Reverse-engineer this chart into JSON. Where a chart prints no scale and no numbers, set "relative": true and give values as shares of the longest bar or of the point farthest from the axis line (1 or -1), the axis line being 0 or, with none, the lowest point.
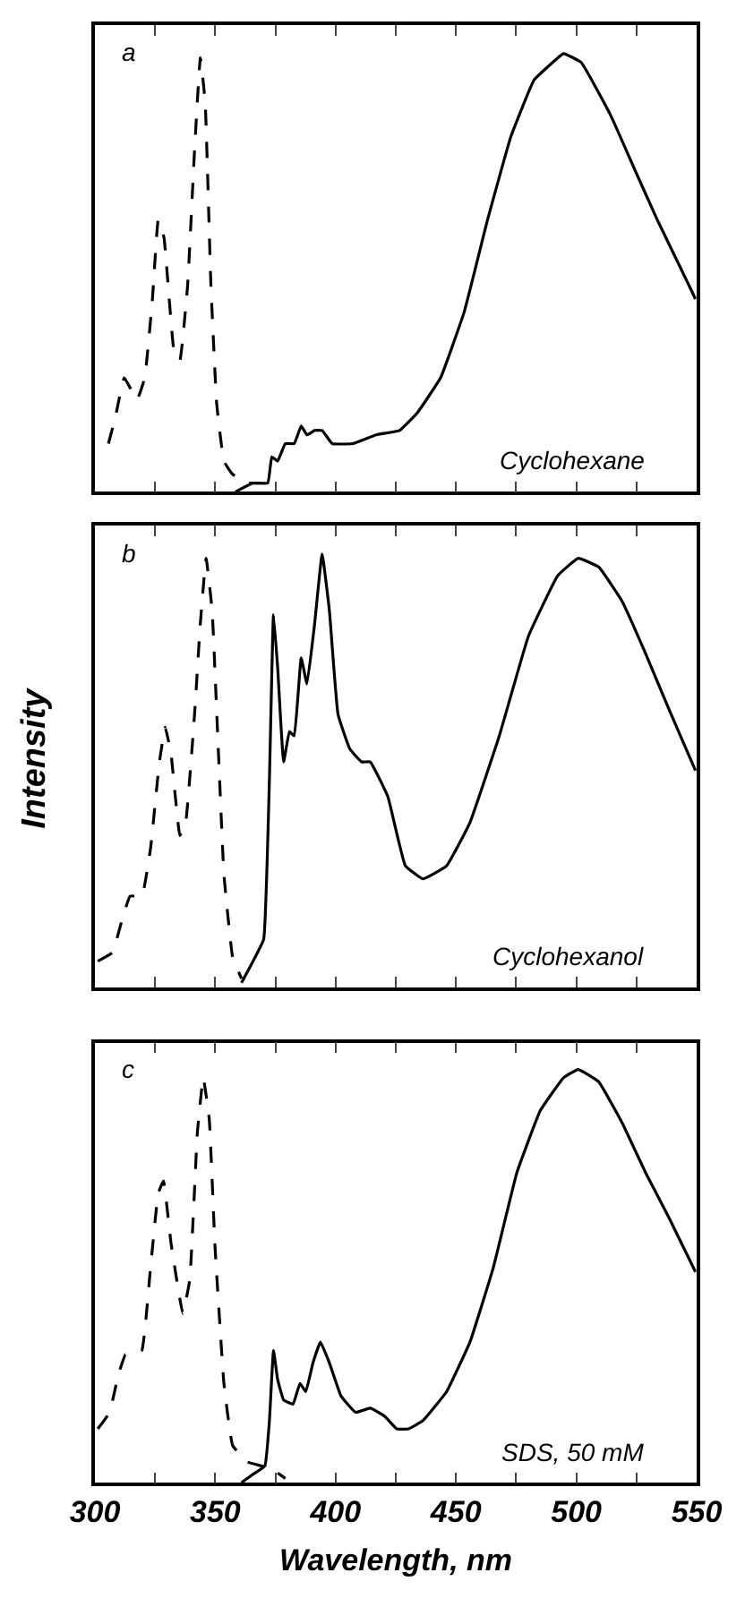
{
  "chart_data": [
    {
      "type": "line",
      "relative": true,
      "xlim": [
        300,
        550
      ],
      "xticks": [
        300,
        {
          "value": 325,
          "label": null
        },
        350,
        {
          "value": 375,
          "label": null
        },
        400,
        {
          "value": 425,
          "label": null
        },
        450,
        {
          "value": 475,
          "label": null
        },
        500,
        {
          "value": 525,
          "label": null
        },
        550
      ],
      "tick_labels": false,
      "annotations": [
        "a",
        "Cyclohexane"
      ],
      "series": [
        {
          "color": "#000000",
          "line_style": "dashed",
          "x": [
            305.6,
            308.5,
            312.2,
            317.5,
            320.7,
            323.9,
            326.3,
            328.7,
            332.9,
            335.3,
            338.5,
            341.4,
            343.8,
            345.8,
            348.2,
            350.6,
            353.6,
            357.2,
            363.3,
            368.2
          ],
          "values": [
            0.11,
            0.17,
            0.26,
            0.21,
            0.26,
            0.44,
            0.62,
            0.58,
            0.32,
            0.3,
            0.47,
            0.78,
            0.99,
            0.89,
            0.47,
            0.2,
            0.07,
            0.04,
            0.02,
            0.02
          ]
        },
        {
          "color": "#000000",
          "line_style": "solid",
          "x": [
            358.4,
            365.7,
            371.8,
            373.5,
            375.9,
            379.1,
            382.8,
            385.7,
            388.1,
            391.3,
            394.4,
            398.6,
            407.1,
            416.8,
            426.6,
            433.9,
            443.6,
            453.4,
            463.1,
            472.8,
            482.5,
            492.3,
            494.7,
            502.0,
            514.2,
            523.9,
            533.7,
            543.4,
            549.5
          ],
          "values": [
            0,
            0.02,
            0.02,
            0.08,
            0.07,
            0.11,
            0.11,
            0.15,
            0.13,
            0.14,
            0.14,
            0.11,
            0.11,
            0.13,
            0.14,
            0.18,
            0.26,
            0.41,
            0.62,
            0.81,
            0.94,
            0.99,
            1.0,
            0.98,
            0.86,
            0.74,
            0.62,
            0.51,
            0.44
          ]
        }
      ]
    },
    {
      "type": "line",
      "relative": true,
      "ylabel": "Intensity",
      "xlim": [
        300,
        550
      ],
      "xticks": [
        300,
        {
          "value": 325,
          "label": null
        },
        350,
        {
          "value": 375,
          "label": null
        },
        400,
        {
          "value": 425,
          "label": null
        },
        450,
        {
          "value": 475,
          "label": null
        },
        500,
        {
          "value": 525,
          "label": null
        },
        550
      ],
      "tick_labels": false,
      "annotations": [
        "b",
        "Cyclohexanol"
      ],
      "series": [
        {
          "color": "#000000",
          "line_style": "dashed",
          "x": [
            301.2,
            307.3,
            311.0,
            314.6,
            319.5,
            323.1,
            326.8,
            329.2,
            331.6,
            335.3,
            337.7,
            341.4,
            343.8,
            346.2,
            348.7,
            351.1,
            353.6,
            357.2,
            360.9
          ],
          "values": [
            0.06,
            0.08,
            0.15,
            0.21,
            0.21,
            0.32,
            0.52,
            0.6,
            0.54,
            0.35,
            0.38,
            0.63,
            0.84,
            0.99,
            0.87,
            0.57,
            0.26,
            0.07,
            0.02
          ]
        },
        {
          "color": "#000000",
          "line_style": "solid",
          "x": [
            360.9,
            365.7,
            370.1,
            372.5,
            374.2,
            375.9,
            378.4,
            380.8,
            382.8,
            385.7,
            388.1,
            391.3,
            394.4,
            397.4,
            401.0,
            405.9,
            410.8,
            414.4,
            421.7,
            429.0,
            436.3,
            446.1,
            455.8,
            468.0,
            480.1,
            492.3,
            500.8,
            509.3,
            519.1,
            528.8,
            538.6,
            549.5
          ],
          "values": [
            0.01,
            0.06,
            0.11,
            0.48,
            0.86,
            0.74,
            0.52,
            0.59,
            0.58,
            0.76,
            0.7,
            0.84,
            1.0,
            0.87,
            0.63,
            0.55,
            0.52,
            0.52,
            0.44,
            0.28,
            0.25,
            0.28,
            0.38,
            0.58,
            0.81,
            0.95,
            0.99,
            0.97,
            0.89,
            0.77,
            0.64,
            0.5
          ]
        }
      ]
    },
    {
      "type": "line",
      "relative": true,
      "xlabel": "Wavelength, nm",
      "xlim": [
        300,
        550
      ],
      "xticks": [
        300,
        {
          "value": 325,
          "label": null
        },
        350,
        {
          "value": 375,
          "label": null
        },
        400,
        {
          "value": 425,
          "label": null
        },
        450,
        {
          "value": 475,
          "label": null
        },
        500,
        {
          "value": 525,
          "label": null
        },
        550
      ],
      "tick_labels": "x",
      "annotations": [
        "c",
        "SDS, 50 mM"
      ],
      "series": [
        {
          "color": "#000000",
          "line_style": "dashed",
          "x": [
            301.2,
            306.1,
            309.7,
            312.7,
            315.8,
            319.5,
            323.1,
            326.3,
            328.5,
            331.6,
            336.5,
            339.4,
            342.6,
            345.0,
            347.5,
            349.9,
            353.6,
            357.2,
            363.3,
            369.4,
            374.2,
            379.1
          ],
          "values": [
            0.13,
            0.17,
            0.26,
            0.31,
            0.31,
            0.32,
            0.52,
            0.7,
            0.73,
            0.58,
            0.41,
            0.49,
            0.85,
            0.98,
            0.88,
            0.57,
            0.24,
            0.09,
            0.05,
            0.04,
            0.03,
            0.01
          ]
        },
        {
          "color": "#000000",
          "line_style": "solid",
          "x": [
            360.9,
            365.7,
            370.6,
            372.5,
            374.2,
            375.9,
            378.4,
            382.3,
            385.2,
            387.6,
            390.6,
            393.7,
            397.4,
            402.2,
            408.3,
            414.4,
            420.5,
            425.4,
            430.2,
            436.3,
            446.1,
            455.8,
            465.5,
            475.3,
            485.0,
            494.7,
            500.8,
            509.3,
            519.1,
            528.8,
            538.6,
            549.5
          ],
          "values": [
            0,
            0.02,
            0.04,
            0.15,
            0.32,
            0.25,
            0.2,
            0.19,
            0.24,
            0.22,
            0.29,
            0.34,
            0.29,
            0.21,
            0.17,
            0.18,
            0.16,
            0.13,
            0.13,
            0.15,
            0.22,
            0.34,
            0.52,
            0.75,
            0.9,
            0.98,
            1.0,
            0.97,
            0.87,
            0.75,
            0.64,
            0.51
          ]
        }
      ]
    }
  ]
}
